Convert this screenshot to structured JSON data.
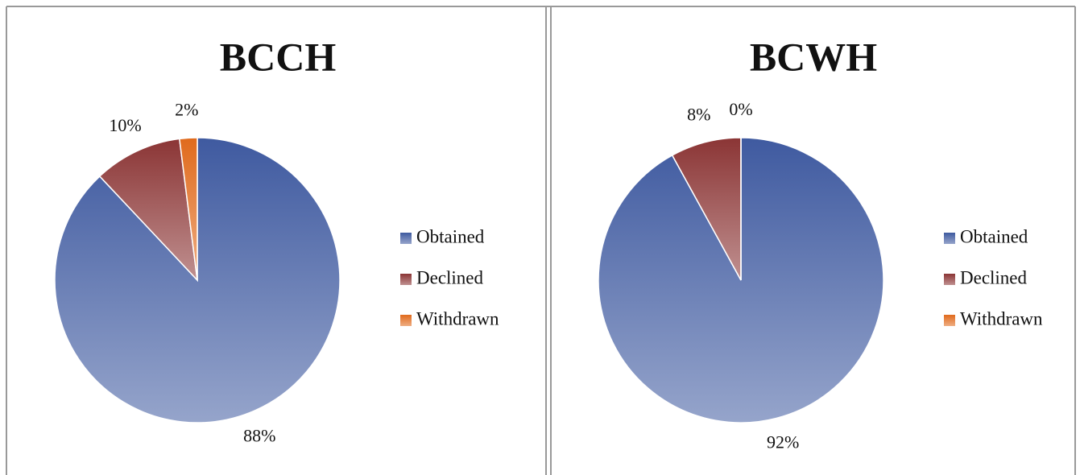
{
  "chart_data": [
    {
      "type": "pie",
      "title": "BCCH",
      "categories": [
        "Obtained",
        "Declined",
        "Withdrawn"
      ],
      "values": [
        88,
        10,
        2
      ],
      "value_labels": [
        "88%",
        "10%",
        "2%"
      ],
      "colors": [
        "#3f5aa0",
        "#8b3535",
        "#e06a1c"
      ]
    },
    {
      "type": "pie",
      "title": "BCWH",
      "categories": [
        "Obtained",
        "Declined",
        "Withdrawn"
      ],
      "values": [
        92,
        8,
        0
      ],
      "value_labels": [
        "92%",
        "8%",
        "0%"
      ],
      "colors": [
        "#3f5aa0",
        "#8b3535",
        "#e06a1c"
      ]
    }
  ]
}
